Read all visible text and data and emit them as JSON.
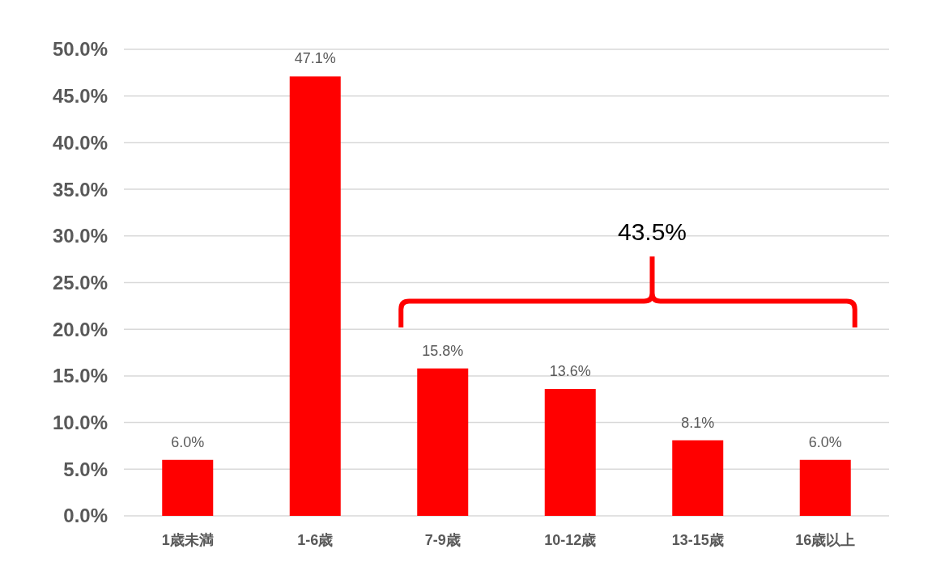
{
  "chart_data": {
    "type": "bar",
    "categories": [
      "1歳未満",
      "1-6歳",
      "7-9歳",
      "10-12歳",
      "13-15歳",
      "16歳以上"
    ],
    "values": [
      6.0,
      47.1,
      15.8,
      13.6,
      8.1,
      6.0
    ],
    "value_labels": [
      "6.0%",
      "47.1%",
      "15.8%",
      "13.6%",
      "8.1%",
      "6.0%"
    ],
    "color": "#ff0000",
    "ylim": [
      0,
      50
    ],
    "yticks": [
      {
        "value": 0,
        "label": "0.0%"
      },
      {
        "value": 5,
        "label": "5.0%"
      },
      {
        "value": 10,
        "label": "10.0%"
      },
      {
        "value": 15,
        "label": "15.0%"
      },
      {
        "value": 20,
        "label": "20.0%"
      },
      {
        "value": 25,
        "label": "25.0%"
      },
      {
        "value": 30,
        "label": "30.0%"
      },
      {
        "value": 35,
        "label": "35.0%"
      },
      {
        "value": 40,
        "label": "40.0%"
      },
      {
        "value": 45,
        "label": "45.0%"
      },
      {
        "value": 50,
        "label": "50.0%"
      }
    ],
    "grid": "y",
    "annotations": [
      "43.5%"
    ]
  }
}
